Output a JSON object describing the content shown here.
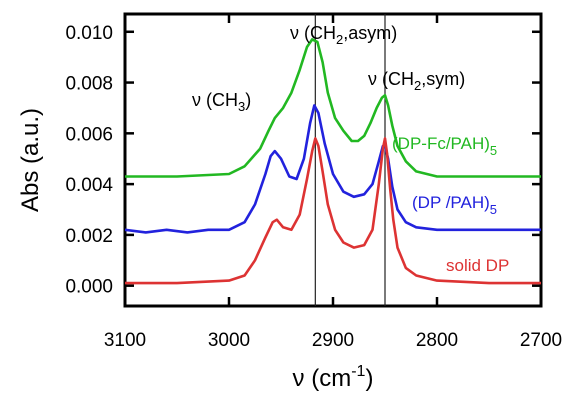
{
  "chart_data": {
    "type": "line",
    "xlabel": "ν (cm",
    "xlabel_sup": "-1",
    "xlabel_close": ")",
    "ylabel": "Abs (a.u.)",
    "xlim": [
      3100,
      2700
    ],
    "ylim": [
      -0.0008,
      0.0107
    ],
    "x_reversed": true,
    "x_ticks": [
      "3100",
      "3000",
      "2900",
      "2800",
      "2700"
    ],
    "x_tick_values": [
      3100,
      3000,
      2900,
      2800,
      2700
    ],
    "y_ticks": [
      "0.000",
      "0.002",
      "0.004",
      "0.006",
      "0.008",
      "0.010"
    ],
    "y_tick_values": [
      0.0,
      0.002,
      0.004,
      0.006,
      0.008,
      0.01
    ],
    "grid": false,
    "vertical_lines": [
      2917,
      2850
    ],
    "annotations": {
      "ch3": {
        "text": "ν (CH",
        "sub": "3",
        "close": ")"
      },
      "ch2_asym": {
        "text": "ν (CH",
        "sub": "2",
        "close": ",asym)"
      },
      "ch2_sym": {
        "text": "ν (CH",
        "sub": "2",
        "close": ",sym)"
      }
    },
    "series": [
      {
        "name": "(DP-Fc/PAH)",
        "name_sub": "5",
        "color": "#22b822",
        "x": [
          3100,
          3050,
          3000,
          2985,
          2970,
          2962,
          2956,
          2948,
          2940,
          2932,
          2925,
          2920,
          2915,
          2910,
          2905,
          2898,
          2890,
          2882,
          2876,
          2870,
          2864,
          2858,
          2853,
          2850,
          2847,
          2843,
          2838,
          2830,
          2820,
          2800,
          2750,
          2700
        ],
        "y": [
          0.0043,
          0.0043,
          0.0044,
          0.0047,
          0.0054,
          0.0061,
          0.0066,
          0.007,
          0.0076,
          0.0085,
          0.0094,
          0.0097,
          0.0096,
          0.0088,
          0.0076,
          0.0066,
          0.0061,
          0.0057,
          0.0057,
          0.0059,
          0.0064,
          0.007,
          0.0074,
          0.0075,
          0.0071,
          0.0063,
          0.0055,
          0.0049,
          0.0045,
          0.0043,
          0.0043,
          0.0043
        ]
      },
      {
        "name": "(DP /PAH)",
        "name_sub": "5",
        "color": "#2222dd",
        "x": [
          3100,
          3080,
          3060,
          3040,
          3020,
          3000,
          2985,
          2975,
          2965,
          2960,
          2956,
          2950,
          2942,
          2935,
          2928,
          2922,
          2918,
          2914,
          2908,
          2900,
          2890,
          2880,
          2870,
          2862,
          2856,
          2852,
          2850,
          2847,
          2843,
          2838,
          2830,
          2820,
          2800,
          2760,
          2700
        ],
        "y": [
          0.0022,
          0.0021,
          0.0022,
          0.0021,
          0.0022,
          0.0022,
          0.0025,
          0.0032,
          0.0044,
          0.0051,
          0.0053,
          0.005,
          0.0043,
          0.0042,
          0.005,
          0.0064,
          0.0071,
          0.0068,
          0.0056,
          0.0044,
          0.0037,
          0.0035,
          0.0036,
          0.004,
          0.0049,
          0.0055,
          0.0055,
          0.005,
          0.0039,
          0.003,
          0.0025,
          0.0023,
          0.0022,
          0.0022,
          0.0022
        ]
      },
      {
        "name": "solid DP",
        "name_sub": "",
        "color": "#dd3333",
        "x": [
          3100,
          3050,
          3000,
          2985,
          2975,
          2965,
          2958,
          2954,
          2948,
          2940,
          2932,
          2925,
          2920,
          2917,
          2914,
          2910,
          2905,
          2898,
          2890,
          2880,
          2870,
          2862,
          2856,
          2852,
          2850,
          2848,
          2845,
          2842,
          2838,
          2830,
          2820,
          2800,
          2750,
          2700
        ],
        "y": [
          0.0001,
          0.0001,
          0.0002,
          0.0004,
          0.001,
          0.0019,
          0.0025,
          0.0026,
          0.0023,
          0.0022,
          0.0028,
          0.0042,
          0.0053,
          0.0058,
          0.0055,
          0.0045,
          0.0032,
          0.0022,
          0.0017,
          0.0015,
          0.0016,
          0.0022,
          0.004,
          0.0054,
          0.0058,
          0.0052,
          0.0038,
          0.0026,
          0.0015,
          0.0007,
          0.0004,
          0.0002,
          0.0001,
          0.0001
        ]
      }
    ]
  }
}
